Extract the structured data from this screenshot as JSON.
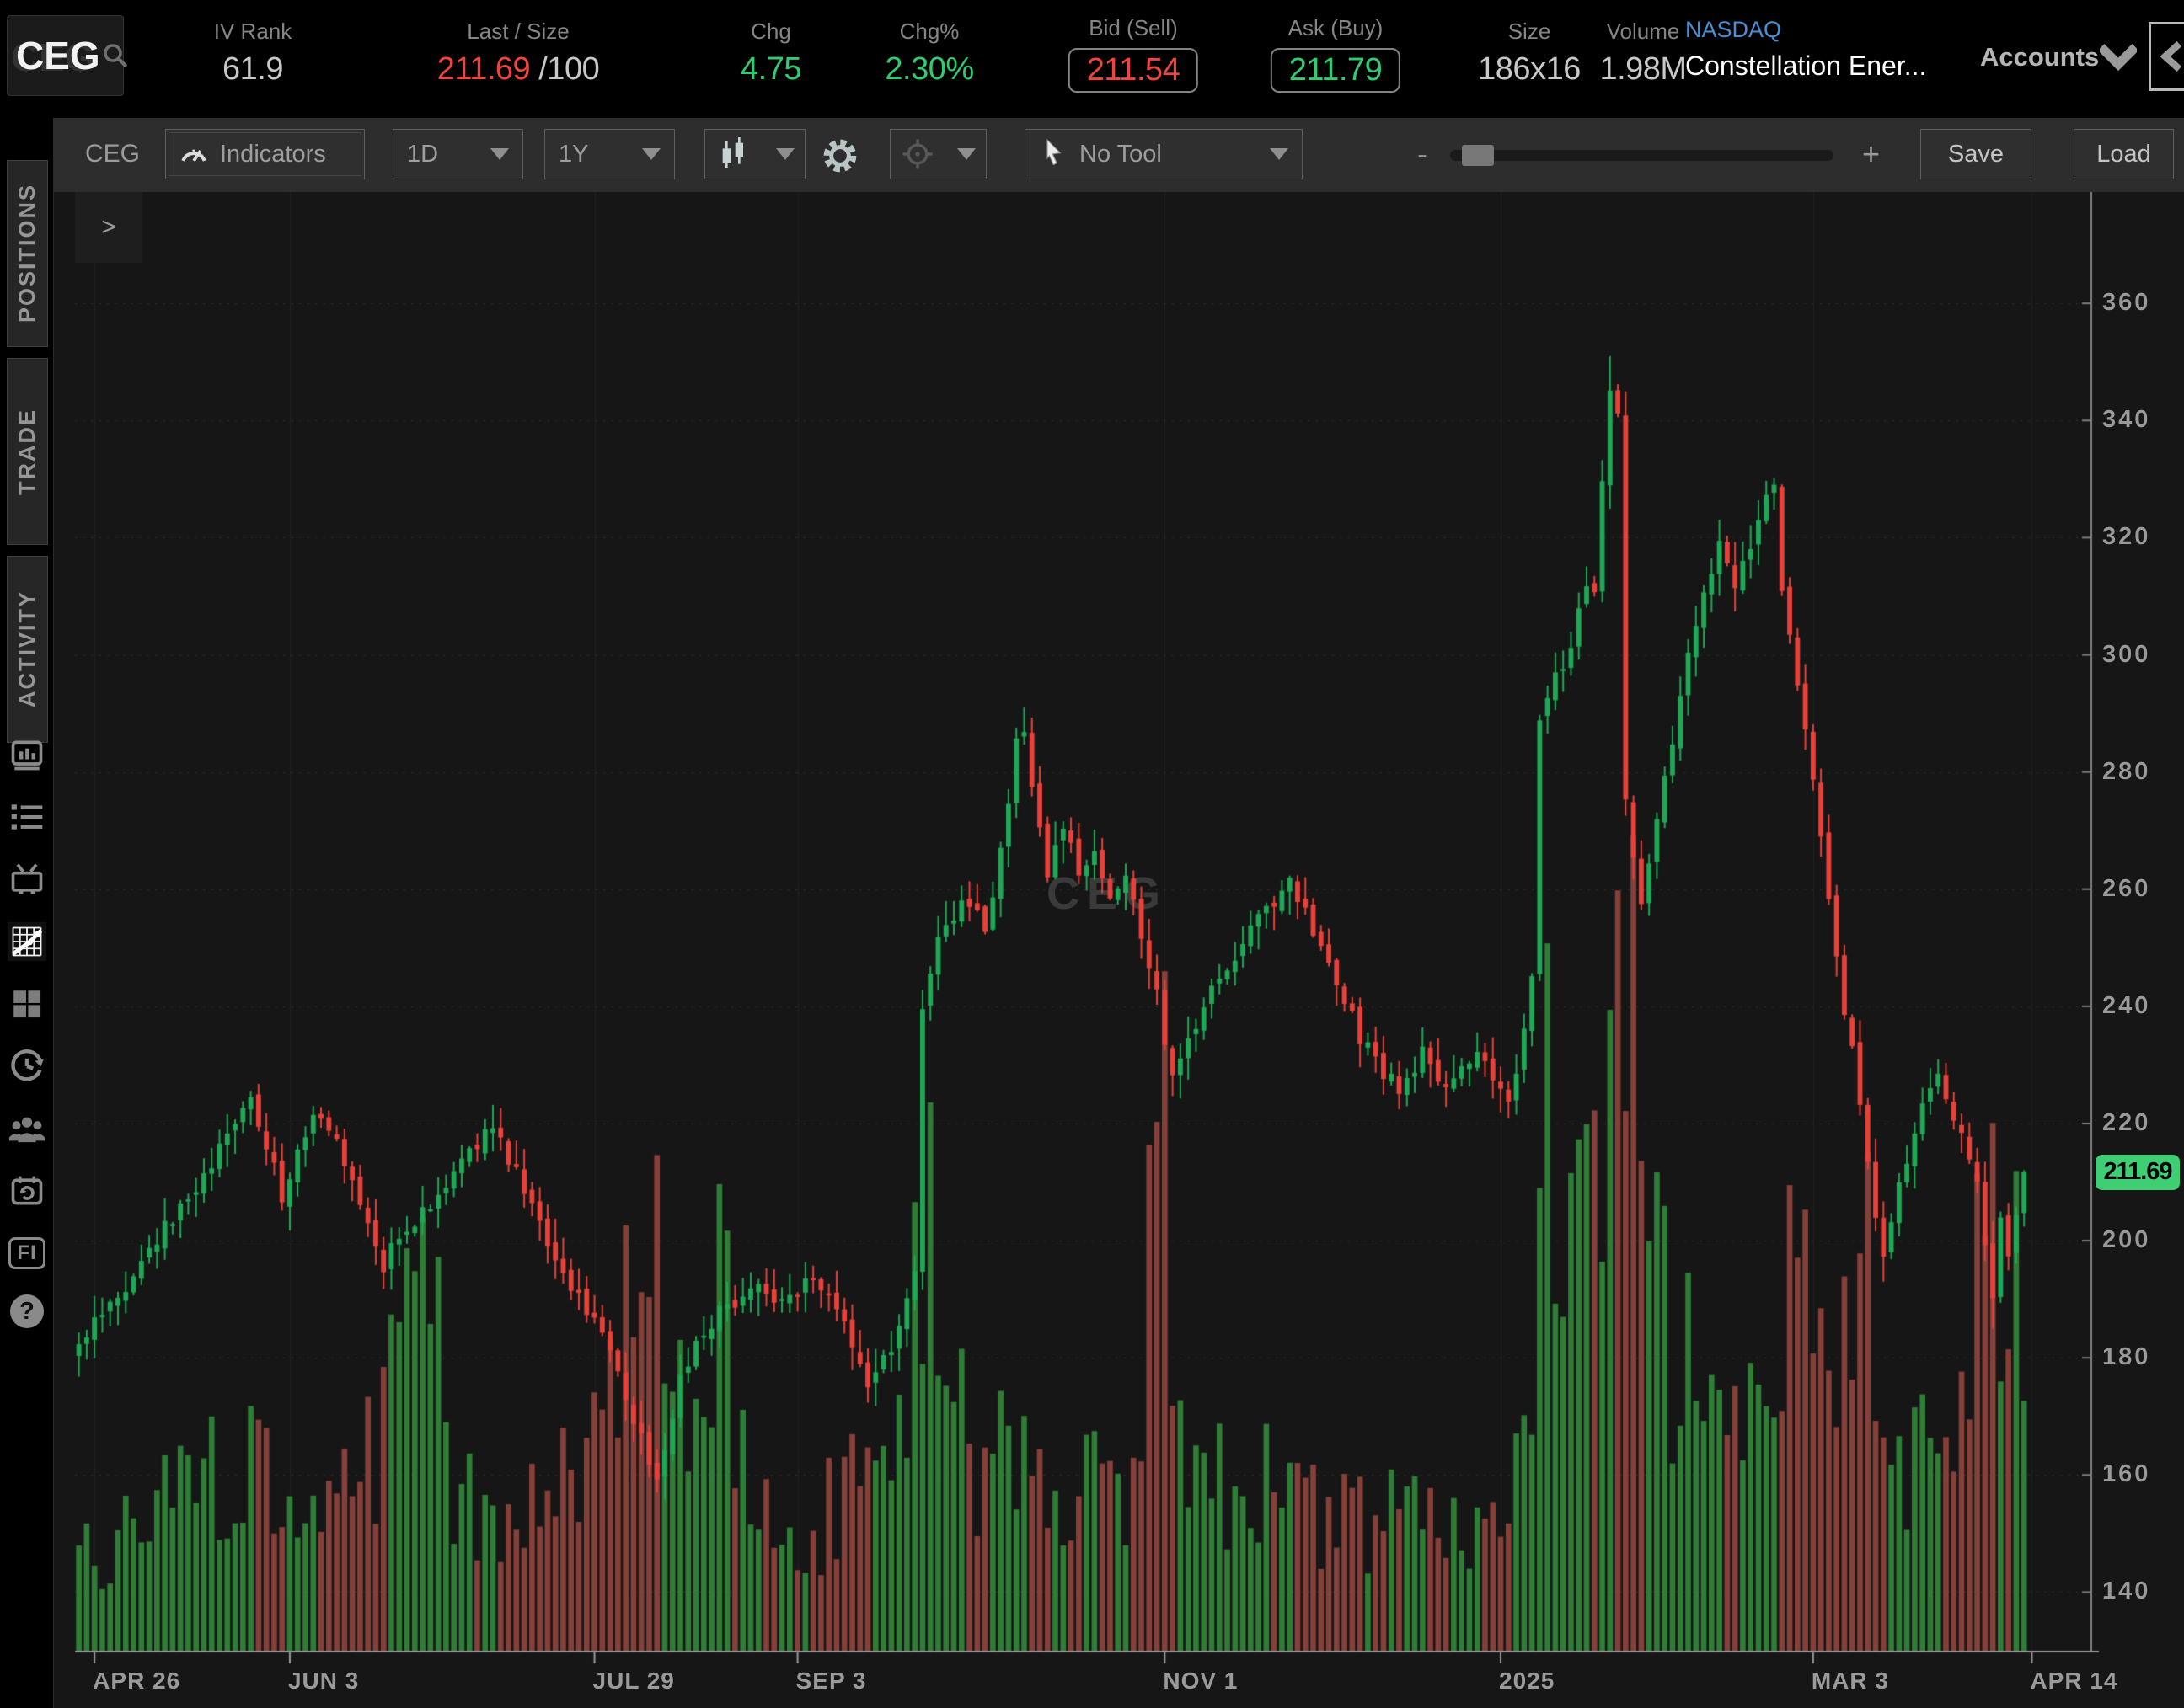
{
  "header": {
    "symbol": "CEG",
    "iv_rank": {
      "label": "IV Rank",
      "value": "61.9"
    },
    "last_size": {
      "label": "Last / Size",
      "last": "211.69",
      "size": "/100"
    },
    "chg": {
      "label": "Chg",
      "value": "4.75"
    },
    "chg_pct": {
      "label": "Chg%",
      "value": "2.30%"
    },
    "bid": {
      "label": "Bid (Sell)",
      "value": "211.54"
    },
    "ask": {
      "label": "Ask (Buy)",
      "value": "211.79"
    },
    "size": {
      "label": "Size",
      "value": "186x16"
    },
    "volume": {
      "label": "Volume",
      "value": "1.98M"
    },
    "exchange": "NASDAQ",
    "company": "Constellation Ener...",
    "accounts_label": "Accounts",
    "accent_red": "#f0453f",
    "accent_green": "#2fcc71",
    "exchange_blue": "#4a8fd4"
  },
  "sidebar": {
    "tabs": [
      {
        "label": "POSITIONS"
      },
      {
        "label": "TRADE"
      },
      {
        "label": "ACTIVITY"
      }
    ],
    "icons": [
      "journal-icon",
      "watchlist-icon",
      "live-tv-icon",
      "chart-icon",
      "grid-icon",
      "history-icon",
      "community-icon",
      "calendar-restore-icon",
      "fi-icon",
      "help-icon"
    ],
    "active_icon": "chart-icon",
    "fi_label": "FI",
    "help_glyph": "?"
  },
  "toolbar": {
    "symbol": "CEG",
    "indicators_label": "Indicators",
    "period": "1D",
    "range": "1Y",
    "tool_label": "No Tool",
    "save_label": "Save",
    "load_label": "Load",
    "zoom_minus": "-",
    "zoom_plus": "+"
  },
  "chart": {
    "expander": ">",
    "watermark": "CEG",
    "price_tag": "211.69"
  },
  "chart_data": {
    "type": "candlestick",
    "symbol": "CEG",
    "period": "1D",
    "range": "1Y",
    "last_price": 211.69,
    "y_axis": {
      "min": 130,
      "max": 379,
      "ticks": [
        360,
        340,
        320,
        300,
        280,
        260,
        240,
        220,
        200,
        180,
        160,
        140
      ]
    },
    "x_axis": {
      "slots": 258,
      "candles": 250,
      "ticks": [
        {
          "label": "APR 26",
          "i": 2
        },
        {
          "label": "JUN 3",
          "i": 27
        },
        {
          "label": "JUL 29",
          "i": 66
        },
        {
          "label": "SEP 3",
          "i": 92
        },
        {
          "label": "NOV 1",
          "i": 139
        },
        {
          "label": "2025",
          "i": 182
        },
        {
          "label": "MAR 3",
          "i": 222
        },
        {
          "label": "APR 14",
          "i": 250
        }
      ]
    },
    "close_keyframes": [
      [
        0,
        182
      ],
      [
        2,
        187
      ],
      [
        5,
        191
      ],
      [
        9,
        198
      ],
      [
        13,
        206
      ],
      [
        17,
        213
      ],
      [
        20,
        220
      ],
      [
        22,
        224
      ],
      [
        24,
        216
      ],
      [
        26,
        208
      ],
      [
        28,
        214
      ],
      [
        30,
        222
      ],
      [
        33,
        218
      ],
      [
        36,
        205
      ],
      [
        39,
        196
      ],
      [
        42,
        202
      ],
      [
        46,
        208
      ],
      [
        50,
        216
      ],
      [
        53,
        219
      ],
      [
        56,
        212
      ],
      [
        58,
        205
      ],
      [
        60,
        199
      ],
      [
        62,
        194
      ],
      [
        64,
        190
      ],
      [
        66,
        186
      ],
      [
        68,
        180
      ],
      [
        70,
        174
      ],
      [
        72,
        166
      ],
      [
        74,
        160
      ],
      [
        76,
        171
      ],
      [
        78,
        180
      ],
      [
        82,
        188
      ],
      [
        86,
        192
      ],
      [
        90,
        190
      ],
      [
        94,
        193
      ],
      [
        97,
        189
      ],
      [
        99,
        183
      ],
      [
        101,
        175
      ],
      [
        103,
        179
      ],
      [
        105,
        186
      ],
      [
        107,
        196
      ],
      [
        108,
        238
      ],
      [
        110,
        252
      ],
      [
        112,
        256
      ],
      [
        114,
        258
      ],
      [
        116,
        254
      ],
      [
        118,
        266
      ],
      [
        120,
        286
      ],
      [
        121,
        288
      ],
      [
        122,
        276
      ],
      [
        124,
        262
      ],
      [
        126,
        270
      ],
      [
        128,
        263
      ],
      [
        130,
        266
      ],
      [
        132,
        258
      ],
      [
        134,
        263
      ],
      [
        136,
        252
      ],
      [
        138,
        243
      ],
      [
        139,
        232
      ],
      [
        140,
        228
      ],
      [
        142,
        234
      ],
      [
        144,
        240
      ],
      [
        147,
        247
      ],
      [
        150,
        253
      ],
      [
        153,
        258
      ],
      [
        155,
        262
      ],
      [
        158,
        252
      ],
      [
        161,
        243
      ],
      [
        164,
        235
      ],
      [
        167,
        229
      ],
      [
        169,
        226
      ],
      [
        172,
        232
      ],
      [
        175,
        225
      ],
      [
        177,
        229
      ],
      [
        179,
        233
      ],
      [
        181,
        228
      ],
      [
        183,
        224
      ],
      [
        185,
        235
      ],
      [
        186,
        244
      ],
      [
        187,
        290
      ],
      [
        189,
        296
      ],
      [
        191,
        302
      ],
      [
        193,
        312
      ],
      [
        194,
        310
      ],
      [
        195,
        330
      ],
      [
        196,
        345
      ],
      [
        197,
        341
      ],
      [
        198,
        276
      ],
      [
        199,
        266
      ],
      [
        200,
        257
      ],
      [
        202,
        272
      ],
      [
        204,
        286
      ],
      [
        206,
        300
      ],
      [
        208,
        312
      ],
      [
        210,
        318
      ],
      [
        212,
        311
      ],
      [
        214,
        318
      ],
      [
        216,
        326
      ],
      [
        217,
        330
      ],
      [
        218,
        310
      ],
      [
        220,
        294
      ],
      [
        222,
        278
      ],
      [
        224,
        257
      ],
      [
        226,
        240
      ],
      [
        228,
        224
      ],
      [
        229,
        214
      ],
      [
        230,
        204
      ],
      [
        231,
        196
      ],
      [
        233,
        210
      ],
      [
        235,
        219
      ],
      [
        237,
        227
      ],
      [
        238,
        229
      ],
      [
        240,
        221
      ],
      [
        242,
        214
      ],
      [
        243,
        209
      ],
      [
        244,
        199
      ],
      [
        245,
        191
      ],
      [
        246,
        203
      ],
      [
        247,
        196
      ],
      [
        248,
        204
      ],
      [
        249,
        211.69
      ]
    ],
    "volume_keyframes": [
      [
        0,
        0.06
      ],
      [
        6,
        0.08
      ],
      [
        14,
        0.1
      ],
      [
        22,
        0.12
      ],
      [
        28,
        0.09
      ],
      [
        36,
        0.1
      ],
      [
        43,
        0.22
      ],
      [
        45,
        0.26
      ],
      [
        48,
        0.1
      ],
      [
        54,
        0.08
      ],
      [
        60,
        0.1
      ],
      [
        66,
        0.13
      ],
      [
        70,
        0.24
      ],
      [
        74,
        0.3
      ],
      [
        77,
        0.18
      ],
      [
        80,
        0.11
      ],
      [
        82,
        0.28
      ],
      [
        85,
        0.12
      ],
      [
        89,
        0.09
      ],
      [
        94,
        0.08
      ],
      [
        99,
        0.11
      ],
      [
        104,
        0.09
      ],
      [
        108,
        0.32
      ],
      [
        111,
        0.16
      ],
      [
        115,
        0.12
      ],
      [
        118,
        0.15
      ],
      [
        122,
        0.1
      ],
      [
        126,
        0.09
      ],
      [
        130,
        0.11
      ],
      [
        134,
        0.1
      ],
      [
        139,
        0.33
      ],
      [
        141,
        0.16
      ],
      [
        145,
        0.1
      ],
      [
        150,
        0.12
      ],
      [
        155,
        0.1
      ],
      [
        160,
        0.09
      ],
      [
        165,
        0.08
      ],
      [
        170,
        0.09
      ],
      [
        175,
        0.07
      ],
      [
        180,
        0.08
      ],
      [
        184,
        0.1
      ],
      [
        186,
        0.24
      ],
      [
        187,
        0.42
      ],
      [
        190,
        0.22
      ],
      [
        193,
        0.26
      ],
      [
        196,
        0.3
      ],
      [
        198,
        0.45
      ],
      [
        200,
        0.3
      ],
      [
        203,
        0.22
      ],
      [
        207,
        0.16
      ],
      [
        211,
        0.14
      ],
      [
        215,
        0.16
      ],
      [
        217,
        0.2
      ],
      [
        220,
        0.24
      ],
      [
        223,
        0.26
      ],
      [
        226,
        0.22
      ],
      [
        229,
        0.28
      ],
      [
        232,
        0.16
      ],
      [
        235,
        0.12
      ],
      [
        238,
        0.13
      ],
      [
        241,
        0.16
      ],
      [
        244,
        0.3
      ],
      [
        246,
        0.26
      ],
      [
        248,
        0.22
      ],
      [
        249,
        0.12
      ]
    ],
    "wick_overrides": {
      "74": {
        "low": 157
      },
      "121": {
        "high": 291
      },
      "196": {
        "high": 351
      },
      "231": {
        "low": 193
      },
      "245": {
        "low": 185
      }
    },
    "colors": {
      "up": "#1fa856",
      "down": "#e8413a",
      "vol_up": "#2f7d36",
      "vol_down": "#86403a",
      "grid_v": "#222222",
      "grid_h": "#2f2f2f",
      "axis_line": "#9a9a9a",
      "right_line": "#808080",
      "tick_text": "#9a9a9a",
      "watermark": "#3a3a3a",
      "tag_bg": "#3ecf74",
      "bg": "#161616"
    }
  }
}
